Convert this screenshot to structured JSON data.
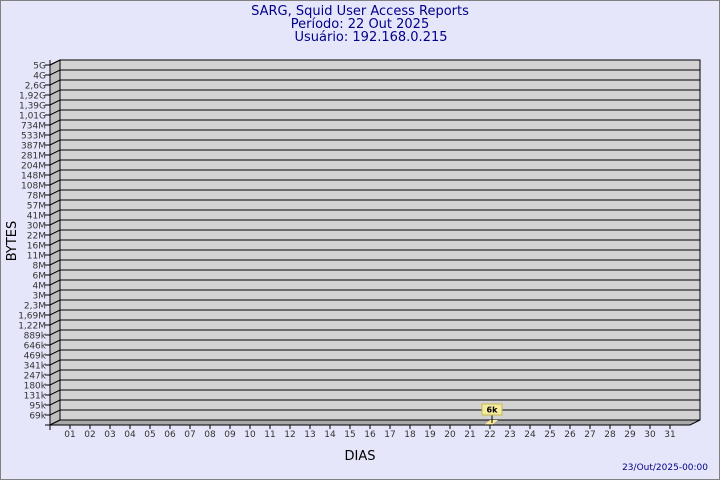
{
  "chart_data": {
    "type": "bar",
    "title": "SARG, Squid User Access Reports",
    "subtitle_lines": [
      "Período: 22 Out 2025",
      "Usuário: 192.168.0.215"
    ],
    "xlabel": "DIAS",
    "ylabel": "BYTES",
    "y_scale": "log",
    "y_tick_labels": [
      "5G",
      "4G",
      "2,6G",
      "1,92G",
      "1,39G",
      "1,01G",
      "734M",
      "533M",
      "387M",
      "281M",
      "204M",
      "148M",
      "108M",
      "78M",
      "57M",
      "41M",
      "30M",
      "22M",
      "16M",
      "11M",
      "8M",
      "6M",
      "4M",
      "3M",
      "2,3M",
      "1,69M",
      "1,22M",
      "889k",
      "646k",
      "469k",
      "341k",
      "247k",
      "180k",
      "131k",
      "95k",
      "69k"
    ],
    "categories": [
      "01",
      "02",
      "03",
      "04",
      "05",
      "06",
      "07",
      "08",
      "09",
      "10",
      "11",
      "12",
      "13",
      "14",
      "15",
      "16",
      "17",
      "18",
      "19",
      "20",
      "21",
      "22",
      "23",
      "24",
      "25",
      "26",
      "27",
      "28",
      "29",
      "30",
      "31"
    ],
    "bars": [
      {
        "day": "22",
        "value_label": "6k",
        "value": 6000
      }
    ],
    "grid": true,
    "footer": "23/Out/2025-00:00",
    "colors": {
      "background": "#e6e6fa",
      "plot": "#d3d3d3",
      "title": "#00008b",
      "bar": "#ffe9a0",
      "label_box": "#f5eb9e"
    }
  }
}
